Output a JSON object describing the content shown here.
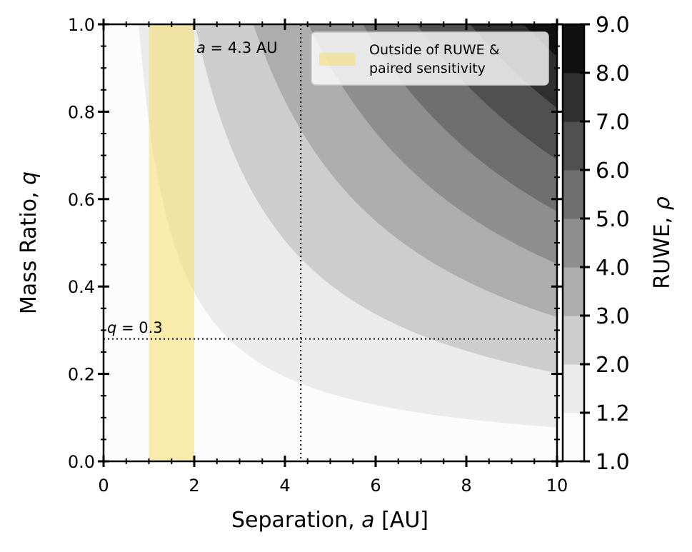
{
  "chart_data": {
    "type": "contour",
    "xlabel_prefix": "Separation, ",
    "xlabel_var": "a",
    "xlabel_suffix": " [AU]",
    "ylabel_prefix": "Mass Ratio, ",
    "ylabel_var": "q",
    "colorbar_label_prefix": "RUWE, ",
    "colorbar_label_var": "ρ",
    "xlim": [
      0,
      10
    ],
    "ylim": [
      0,
      1.0
    ],
    "x_ticks": [
      0,
      2,
      4,
      6,
      8,
      10
    ],
    "x_tick_labels": [
      "0",
      "2",
      "4",
      "6",
      "8",
      "10"
    ],
    "y_ticks": [
      0.0,
      0.2,
      0.4,
      0.6,
      0.8,
      1.0
    ],
    "y_tick_labels": [
      "0.0",
      "0.2",
      "0.4",
      "0.6",
      "0.8",
      "1.0"
    ],
    "contour_levels": [
      1.0,
      1.2,
      2.0,
      3.0,
      4.0,
      5.0,
      6.0,
      7.0,
      8.0,
      9.0
    ],
    "contour_level_labels": [
      "1.0",
      "1.2",
      "2.0",
      "3.0",
      "4.0",
      "5.0",
      "6.0",
      "7.0",
      "8.0",
      "9.0"
    ],
    "contour_colors": [
      "#fcfcfc",
      "#ebebeb",
      "#cdcdcd",
      "#adadad",
      "#8e8e8e",
      "#6f6f6f",
      "#505050",
      "#2f2f2f",
      "#111111"
    ],
    "rho_model": "rho = sqrt(1 + (k*q*a)^2)",
    "shaded_region": {
      "x_range": [
        1,
        2
      ],
      "color": "#f5dc6a",
      "legend_label_line1": "Outside of RUWE &",
      "legend_label_line2": "paired sensitivity"
    },
    "vline": {
      "x": 4.35,
      "label_var": "a",
      "label_rest": " = 4.3 AU"
    },
    "hline": {
      "y": 0.28,
      "label_var": "q",
      "label_rest": " = 0.3"
    },
    "legend_position": "top-right",
    "grid": false
  }
}
